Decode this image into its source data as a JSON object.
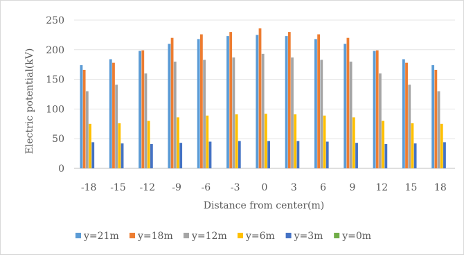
{
  "chart_data": {
    "type": "bar",
    "title": "",
    "xlabel": "Distance from center(m)",
    "ylabel": "Electric potential(kV)",
    "categories": [
      "-18",
      "-15",
      "-12",
      "-9",
      "-6",
      "-3",
      "0",
      "3",
      "6",
      "9",
      "12",
      "15",
      "18"
    ],
    "yticks": [
      "0",
      "50",
      "100",
      "150",
      "200",
      "250"
    ],
    "ylim": [
      0,
      250
    ],
    "grid": true,
    "legend_position": "bottom",
    "series": [
      {
        "name": "y=21m",
        "color": "#5b9bd5",
        "values": [
          174,
          184,
          198,
          210,
          218,
          223,
          225,
          223,
          218,
          210,
          198,
          184,
          174
        ]
      },
      {
        "name": "y=18m",
        "color": "#ed7d31",
        "values": [
          166,
          178,
          199,
          220,
          226,
          230,
          236,
          230,
          226,
          220,
          199,
          178,
          166
        ]
      },
      {
        "name": "y=12m",
        "color": "#a5a5a5",
        "values": [
          130,
          141,
          160,
          180,
          183,
          187,
          193,
          187,
          183,
          180,
          160,
          141,
          130
        ]
      },
      {
        "name": "y=6m",
        "color": "#ffc000",
        "values": [
          75,
          76,
          80,
          86,
          89,
          91,
          92,
          91,
          89,
          86,
          80,
          76,
          75
        ]
      },
      {
        "name": "y=3m",
        "color": "#4472c4",
        "values": [
          44,
          42,
          41,
          43,
          45,
          46,
          46,
          46,
          45,
          43,
          41,
          42,
          44
        ]
      },
      {
        "name": "y=0m",
        "color": "#70ad47",
        "values": [
          0,
          0,
          0,
          0,
          0,
          0,
          0,
          0,
          0,
          0,
          0,
          0,
          0
        ]
      }
    ]
  }
}
